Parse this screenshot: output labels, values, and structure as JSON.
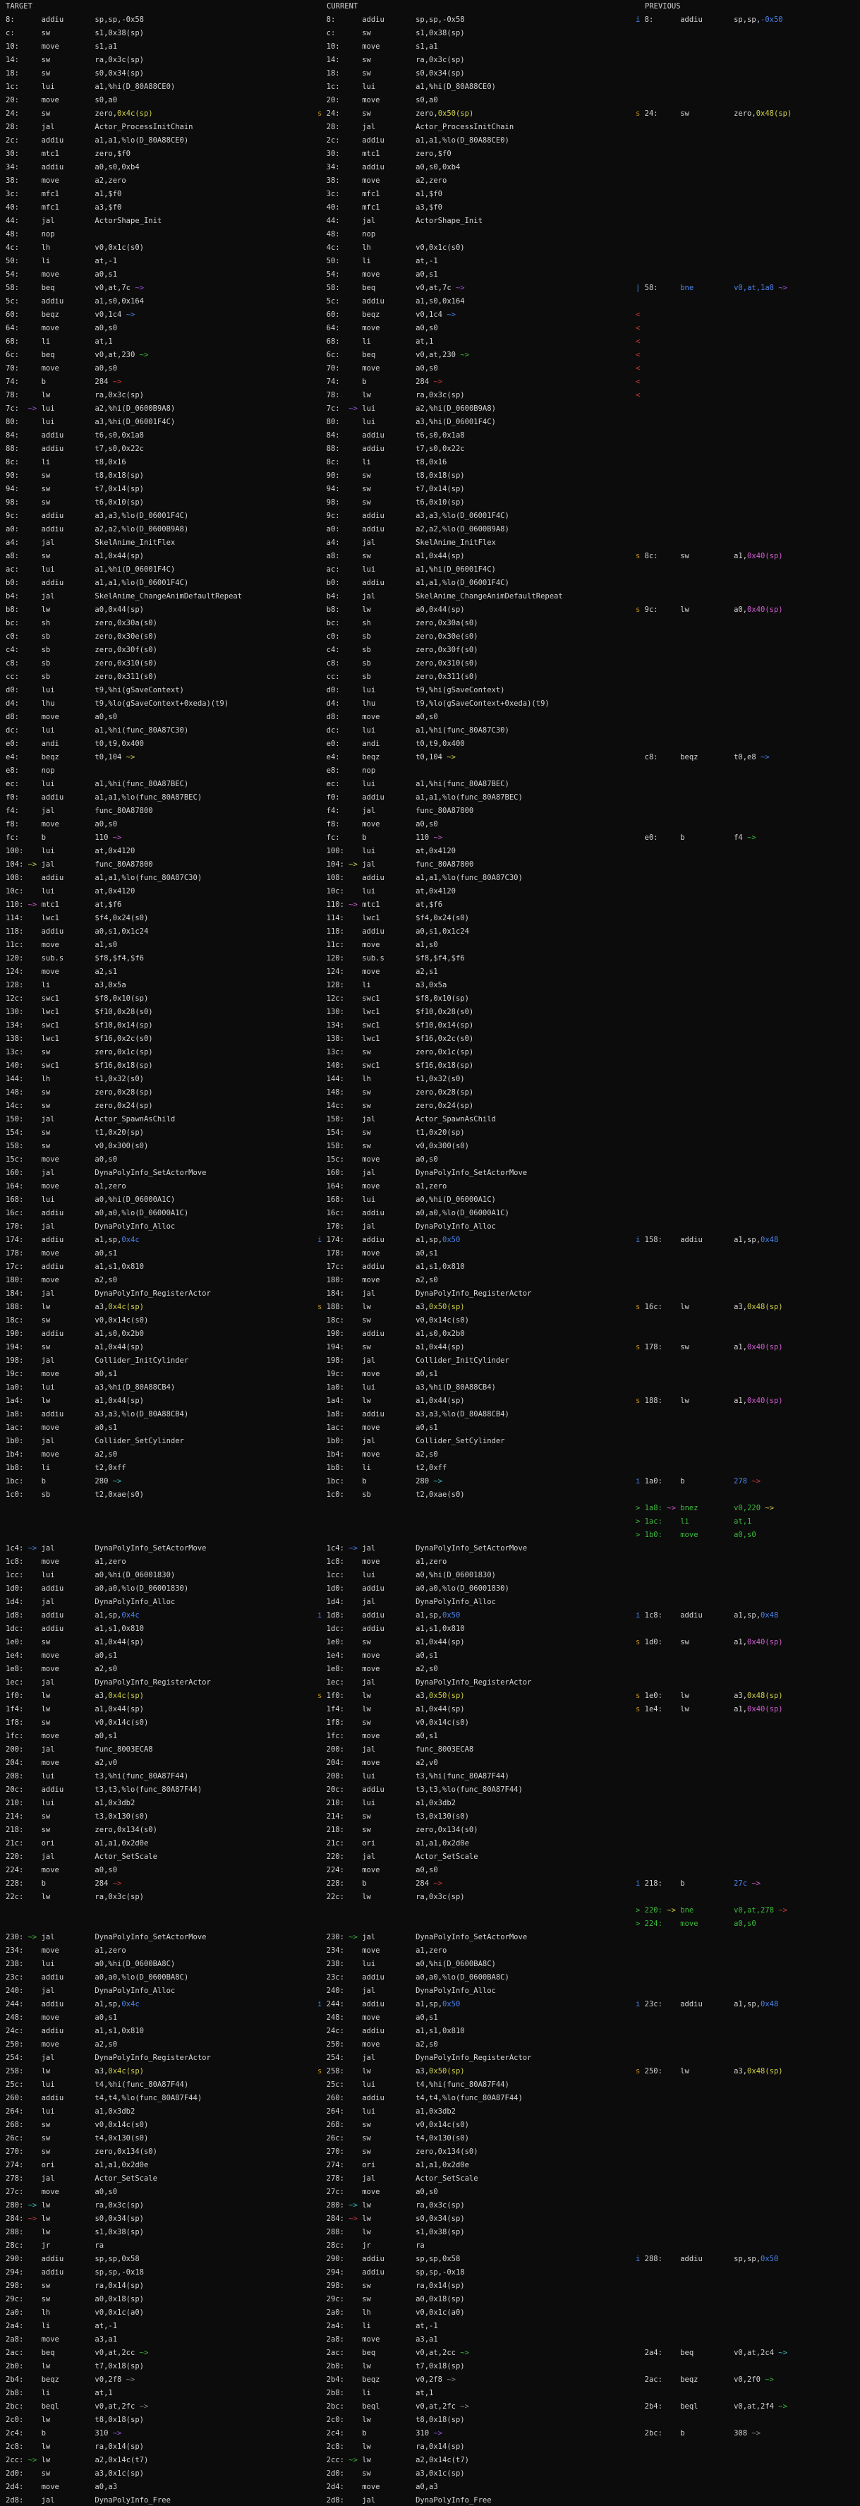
{
  "meta": {
    "tool": "asm-diff three-column view",
    "colors": {
      "bg": "#0c0c0c",
      "fg": "#d4d4d4",
      "y": "#d0d04a",
      "o": "#c39117",
      "b": "#4a82e8",
      "m": "#d05fd0",
      "p": "#9757d8",
      "g": "#3cb93c",
      "r": "#cc3b3b",
      "c": "#3cbcbc",
      "d": "#8a8a8a"
    }
  },
  "columns": {
    "target": "TARGET",
    "current": "CURRENT",
    "previous": "PREVIOUS"
  },
  "rows": [
    [
      "8:      addiu       sp,sp,-0x58",
      "=",
      "{b:i} 8:      addiu       sp,sp,{b:-0x50}"
    ],
    "c:      sw          s1,0x38(sp)",
    "10:     move        s1,a1",
    "14:     sw          ra,0x3c(sp)",
    "18:     sw          s0,0x34(sp)",
    "1c:     lui         a1,%hi(D_80A88CE0)",
    "20:     move        s0,a0",
    [
      "24:     sw          zero,{y:0x4c(sp)}",
      "{o:s} 24:     sw          zero,{y:0x50(sp)}",
      "{o:s} 24:     sw          zero,{y:0x48(sp)}"
    ],
    "28:     jal         Actor_ProcessInitChain",
    "2c:     addiu       a1,a1,%lo(D_80A88CE0)",
    "30:     mtc1        zero,$f0",
    "34:     addiu       a0,s0,0xb4",
    "38:     move        a2,zero",
    "3c:     mfc1        a1,$f0",
    "40:     mfc1        a3,$f0",
    "44:     jal         ActorShape_Init",
    "48:     nop",
    "4c:     lh          v0,0x1c(s0)",
    "50:     li          at,-1",
    "54:     move        a0,s1",
    [
      "58:     beq         v0,at,7c {p:~>}",
      "=",
      "{b:|} 58:     {b:bne}         {b:v0,at,1a8} {p:~>}"
    ],
    "5c:     addiu       a1,s0,0x164",
    [
      "60:     beqz        v0,1c4 {b:~>}",
      "=",
      "{r:<}"
    ],
    [
      "64:     move        a0,s0",
      "=",
      "{r:<}"
    ],
    [
      "68:     li          at,1",
      "=",
      "{r:<}"
    ],
    [
      "6c:     beq         v0,at,230 {g:~>}",
      "=",
      "{r:<}"
    ],
    [
      "70:     move        a0,s0",
      "=",
      "{r:<}"
    ],
    [
      "74:     b           284 {r:~>}",
      "=",
      "{r:<}"
    ],
    [
      "78:     lw          ra,0x3c(sp)",
      "=",
      "{r:<}"
    ],
    "7c:  {p:~>} lui         a2,%hi(D_0600B9A8)",
    "80:     lui         a3,%hi(D_06001F4C)",
    "84:     addiu       t6,s0,0x1a8",
    "88:     addiu       t7,s0,0x22c",
    "8c:     li          t8,0x16",
    "90:     sw          t8,0x18(sp)",
    "94:     sw          t7,0x14(sp)",
    "98:     sw          t6,0x10(sp)",
    "9c:     addiu       a3,a3,%lo(D_06001F4C)",
    "a0:     addiu       a2,a2,%lo(D_0600B9A8)",
    "a4:     jal         SkelAnime_InitFlex",
    [
      "a8:     sw          a1,0x44(sp)",
      "=",
      "{o:s} 8c:     sw          a1,{m:0x40(sp)}"
    ],
    "ac:     lui         a1,%hi(D_06001F4C)",
    "b0:     addiu       a1,a1,%lo(D_06001F4C)",
    "b4:     jal         SkelAnime_ChangeAnimDefaultRepeat",
    [
      "b8:     lw          a0,0x44(sp)",
      "=",
      "{o:s} 9c:     lw          a0,{m:0x40(sp)}"
    ],
    "bc:     sh          zero,0x30a(s0)",
    "c0:     sb          zero,0x30e(s0)",
    "c4:     sb          zero,0x30f(s0)",
    "c8:     sb          zero,0x310(s0)",
    "cc:     sb          zero,0x311(s0)",
    "d0:     lui         t9,%hi(gSaveContext)",
    "d4:     lhu         t9,%lo(gSaveContext+0xeda)(t9)",
    "d8:     move        a0,s0",
    "dc:     lui         a1,%hi(func_80A87C30)",
    "e0:     andi        t0,t9,0x400",
    [
      "e4:     beqz        t0,104 {y:~>}",
      "=",
      "  c8:     beqz        t0,e8 {b:~>}"
    ],
    "e8:     nop",
    "ec:     lui         a1,%hi(func_80A87BEC)",
    "f0:     addiu       a1,a1,%lo(func_80A87BEC)",
    "f4:     jal         func_80A87800",
    "f8:     move        a0,s0",
    [
      "fc:     b           110 {m:~>}",
      "=",
      "  e0:     b           f4 {g:~>}"
    ],
    "100:    lui         at,0x4120",
    "104: {y:~>} jal         func_80A87800",
    "108:    addiu       a1,a1,%lo(func_80A87C30)",
    "10c:    lui         at,0x4120",
    "110: {m:~>} mtc1        at,$f6",
    "114:    lwc1        $f4,0x24(s0)",
    "118:    addiu       a0,s1,0x1c24",
    "11c:    move        a1,s0",
    "120:    sub.s       $f8,$f4,$f6",
    "124:    move        a2,s1",
    "128:    li          a3,0x5a",
    "12c:    swc1        $f8,0x10(sp)",
    "130:    lwc1        $f10,0x28(s0)",
    "134:    swc1        $f10,0x14(sp)",
    "138:    lwc1        $f16,0x2c(s0)",
    "13c:    sw          zero,0x1c(sp)",
    "140:    swc1        $f16,0x18(sp)",
    "144:    lh          t1,0x32(s0)",
    "148:    sw          zero,0x28(sp)",
    "14c:    sw          zero,0x24(sp)",
    "150:    jal         Actor_SpawnAsChild",
    "154:    sw          t1,0x20(sp)",
    "158:    sw          v0,0x300(s0)",
    "15c:    move        a0,s0",
    "160:    jal         DynaPolyInfo_SetActorMove",
    "164:    move        a1,zero",
    "168:    lui         a0,%hi(D_06000A1C)",
    "16c:    addiu       a0,a0,%lo(D_06000A1C)",
    "170:    jal         DynaPolyInfo_Alloc",
    [
      "174:    addiu       a1,sp,{b:0x4c}",
      "{b:i} 174:    addiu       a1,sp,{b:0x50}",
      "{b:i} 158:    addiu       a1,sp,{b:0x48}"
    ],
    "178:    move        a0,s1",
    "17c:    addiu       a1,s1,0x810",
    "180:    move        a2,s0",
    "184:    jal         DynaPolyInfo_RegisterActor",
    [
      "188:    lw          a3,{y:0x4c(sp)}",
      "{o:s} 188:    lw          a3,{y:0x50(sp)}",
      "{o:s} 16c:    lw          a3,{y:0x48(sp)}"
    ],
    "18c:    sw          v0,0x14c(s0)",
    "190:    addiu       a1,s0,0x2b0",
    [
      "194:    sw          a1,0x44(sp)",
      "=",
      "{o:s} 178:    sw          a1,{m:0x40(sp)}"
    ],
    "198:    jal         Collider_InitCylinder",
    "19c:    move        a0,s1",
    "1a0:    lui         a3,%hi(D_80A88CB4)",
    [
      "1a4:    lw          a1,0x44(sp)",
      "=",
      "{o:s} 188:    lw          a1,{m:0x40(sp)}"
    ],
    "1a8:    addiu       a3,a3,%lo(D_80A88CB4)",
    "1ac:    move        a0,s1",
    "1b0:    jal         Collider_SetCylinder",
    "1b4:    move        a2,s0",
    "1b8:    li          t2,0xff",
    [
      "1bc:    b           280 {c:~>}",
      "=",
      "{b:i} 1a0:    b           {b:278} {r:~>}"
    ],
    "1c0:    sb          t2,0xae(s0)",
    [
      "",
      "",
      "{g:>} {g:1a8:} {m:~>} {g:bnez        v0,220} {y:~>}"
    ],
    [
      "",
      "",
      "{g:>} {g:1ac:    li          at,1}"
    ],
    [
      "",
      "",
      "{g:>} {g:1b0:    move        a0,s0}"
    ],
    "1c4: {b:~>} jal         DynaPolyInfo_SetActorMove",
    "1c8:    move        a1,zero",
    "1cc:    lui         a0,%hi(D_06001830)",
    "1d0:    addiu       a0,a0,%lo(D_06001830)",
    "1d4:    jal         DynaPolyInfo_Alloc",
    [
      "1d8:    addiu       a1,sp,{b:0x4c}",
      "{b:i} 1d8:    addiu       a1,sp,{b:0x50}",
      "{b:i} 1c8:    addiu       a1,sp,{b:0x48}"
    ],
    "1dc:    addiu       a1,s1,0x810",
    [
      "1e0:    sw          a1,0x44(sp)",
      "=",
      "{o:s} 1d0:    sw          a1,{m:0x40(sp)}"
    ],
    "1e4:    move        a0,s1",
    "1e8:    move        a2,s0",
    "1ec:    jal         DynaPolyInfo_RegisterActor",
    [
      "1f0:    lw          a3,{y:0x4c(sp)}",
      "{o:s} 1f0:    lw          a3,{y:0x50(sp)}",
      "{o:s} 1e0:    lw          a3,{y:0x48(sp)}"
    ],
    [
      "1f4:    lw          a1,0x44(sp)",
      "=",
      "{o:s} 1e4:    lw          a1,{m:0x40(sp)}"
    ],
    "1f8:    sw          v0,0x14c(s0)",
    "1fc:    move        a0,s1",
    "200:    jal         func_8003ECA8",
    "204:    move        a2,v0",
    "208:    lui         t3,%hi(func_80A87F44)",
    "20c:    addiu       t3,t3,%lo(func_80A87F44)",
    "210:    lui         a1,0x3db2",
    "214:    sw          t3,0x130(s0)",
    "218:    sw          zero,0x134(s0)",
    "21c:    ori         a1,a1,0x2d0e",
    "220:    jal         Actor_SetScale",
    "224:    move        a0,s0",
    [
      "228:    b           284 {r:~>}",
      "=",
      "{b:i} 218:    b           {b:27c} {m:~>}"
    ],
    "22c:    lw          ra,0x3c(sp)",
    [
      "",
      "",
      "{g:>} {g:220:} {y:~>} {g:bne         v0,at,278} {r:~>}"
    ],
    [
      "",
      "",
      "{g:>} {g:224:    move        a0,s0}"
    ],
    "230: {g:~>} jal         DynaPolyInfo_SetActorMove",
    "234:    move        a1,zero",
    "238:    lui         a0,%hi(D_0600BA8C)",
    "23c:    addiu       a0,a0,%lo(D_0600BA8C)",
    "240:    jal         DynaPolyInfo_Alloc",
    [
      "244:    addiu       a1,sp,{b:0x4c}",
      "{b:i} 244:    addiu       a1,sp,{b:0x50}",
      "{b:i} 23c:    addiu       a1,sp,{b:0x48}"
    ],
    "248:    move        a0,s1",
    "24c:    addiu       a1,s1,0x810",
    "250:    move        a2,s0",
    "254:    jal         DynaPolyInfo_RegisterActor",
    [
      "258:    lw          a3,{y:0x4c(sp)}",
      "{o:s} 258:    lw          a3,{y:0x50(sp)}",
      "{o:s} 250:    lw          a3,{y:0x48(sp)}"
    ],
    "25c:    lui         t4,%hi(func_80A87F44)",
    "260:    addiu       t4,t4,%lo(func_80A87F44)",
    "264:    lui         a1,0x3db2",
    "268:    sw          v0,0x14c(s0)",
    "26c:    sw          t4,0x130(s0)",
    "270:    sw          zero,0x134(s0)",
    "274:    ori         a1,a1,0x2d0e",
    "278:    jal         Actor_SetScale",
    "27c:    move        a0,s0",
    "280: {c:~>} lw          ra,0x3c(sp)",
    "284: {r:~>} lw          s0,0x34(sp)",
    "288:    lw          s1,0x38(sp)",
    "28c:    jr          ra",
    [
      "290:    addiu       sp,sp,0x58",
      "=",
      "{b:i} 288:    addiu       sp,sp,{b:0x50}"
    ],
    "294:    addiu       sp,sp,-0x18",
    "298:    sw          ra,0x14(sp)",
    "29c:    sw          a0,0x18(sp)",
    "2a0:    lh          v0,0x1c(a0)",
    "2a4:    li          at,-1",
    "2a8:    move        a3,a1",
    [
      "2ac:    beq         v0,at,2cc {g:~>}",
      "=",
      "  2a4:    beq         v0,at,2c4 {c:~>}"
    ],
    "2b0:    lw          t7,0x18(sp)",
    [
      "2b4:    beqz        v0,2f8 {d:~>}",
      "=",
      "  2ac:    beqz        v0,2f0 {g:~>}"
    ],
    "2b8:    li          at,1",
    [
      "2bc:    beql        v0,at,2fc {d:~>}",
      "=",
      "  2b4:    beql        v0,at,2f4 {g:~>}"
    ],
    "2c0:    lw          t8,0x18(sp)",
    [
      "2c4:    b           310 {p:~>}",
      "=",
      "  2bc:    b           308 {d:~>}"
    ],
    "2c8:    lw          ra,0x14(sp)",
    "2cc: {g:~>} lw          a2,0x14c(t7)",
    "2d0:    sw          a3,0x1c(sp)",
    "2d4:    move        a0,a3",
    "2d8:    jal         DynaPolyInfo_Free"
  ]
}
